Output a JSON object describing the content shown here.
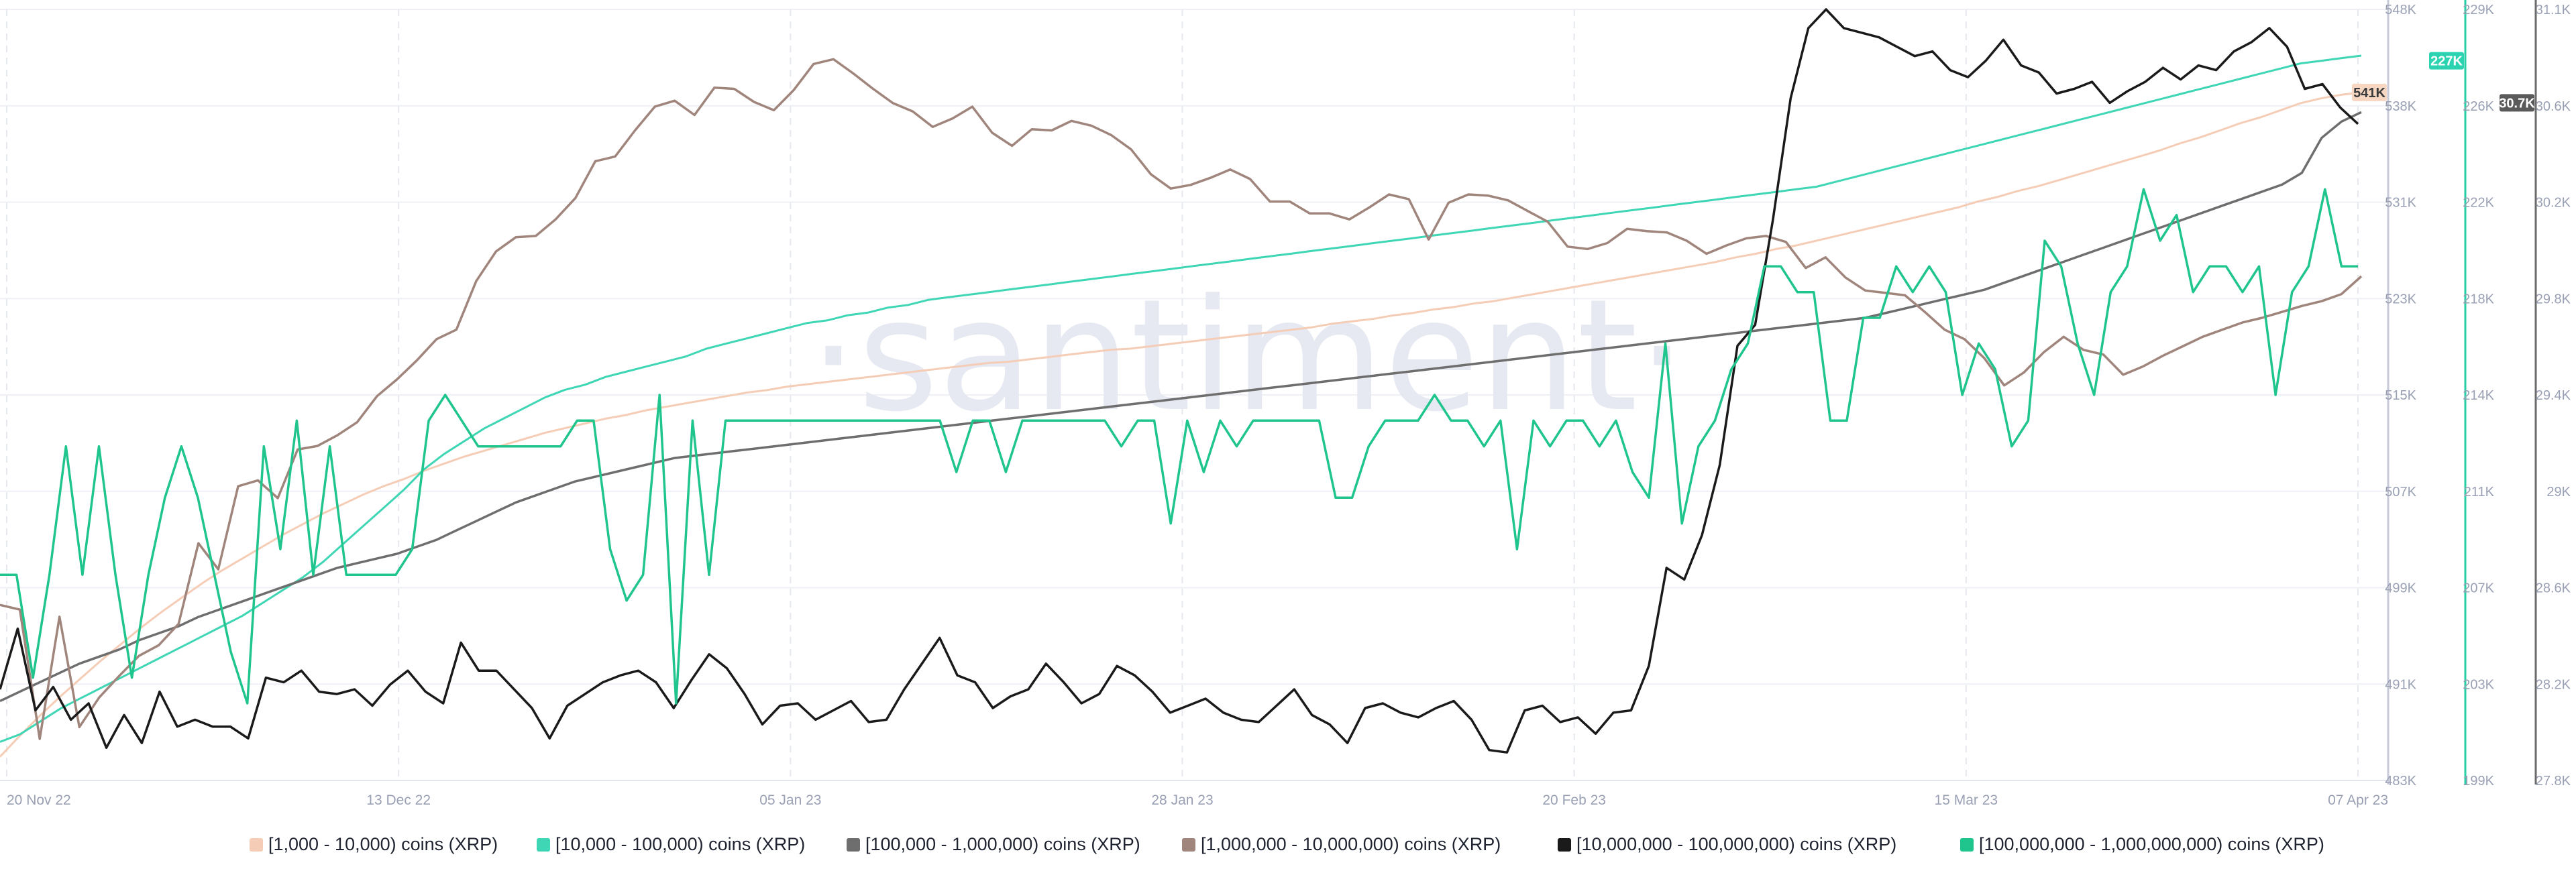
{
  "chart_data": {
    "type": "line",
    "watermark": "·santiment·",
    "x_ticks": [
      "20 Nov 22",
      "13 Dec 22",
      "05 Jan 23",
      "28 Jan 23",
      "20 Feb 23",
      "15 Mar 23",
      "07 Apr 23"
    ],
    "axes": [
      {
        "id": "a1",
        "color": "#c7c9d9",
        "ticks": [
          "548K",
          "538K",
          "531K",
          "523K",
          "515K",
          "507K",
          "499K",
          "491K",
          "483K"
        ],
        "ylim": [
          483,
          548
        ],
        "current_badge": "541K",
        "badge_color": "#f7d6c2",
        "badge_text_color": "#3a3a3a"
      },
      {
        "id": "a2",
        "color": "#26d0a4",
        "ticks": [
          "229K",
          "226K",
          "222K",
          "218K",
          "214K",
          "211K",
          "207K",
          "203K",
          "199K"
        ],
        "ylim": [
          199,
          229
        ],
        "current_badge": "227K",
        "badge_color": "#2bd3b0",
        "badge_text_color": "#ffffff"
      },
      {
        "id": "a3",
        "color": "#6b6b6b",
        "ticks": [
          "31.1K",
          "30.6K",
          "30.2K",
          "29.8K",
          "29.4K",
          "29K",
          "28.6K",
          "28.2K",
          "27.8K"
        ],
        "ylim": [
          27.8,
          31.1
        ],
        "current_badge": "30.7K",
        "badge_color": "#5a5a5a",
        "badge_text_color": "#ffffff"
      }
    ],
    "series": [
      {
        "name": "[1,000 - 10,000) coins (XRP)",
        "color": "#f5cdb6",
        "unit": "K",
        "y": [
          485.0,
          486.8,
          488.5,
          490.1,
          491.6,
          493.1,
          494.5,
          495.9,
          497.2,
          498.4,
          499.6,
          500.7,
          501.7,
          502.7,
          503.7,
          504.6,
          505.5,
          506.3,
          507.1,
          507.8,
          508.4,
          509.1,
          509.7,
          510.3,
          510.8,
          511.3,
          511.8,
          512.3,
          512.7,
          513.1,
          513.5,
          513.8,
          514.2,
          514.5,
          514.8,
          515.1,
          515.4,
          515.7,
          515.9,
          516.2,
          516.4,
          516.6,
          516.8,
          517.0,
          517.2,
          517.4,
          517.6,
          517.8,
          518.0,
          518.2,
          518.3,
          518.5,
          518.7,
          518.9,
          519.1,
          519.3,
          519.4,
          519.6,
          519.8,
          520.0,
          520.2,
          520.4,
          520.6,
          520.8,
          521.0,
          521.2,
          521.5,
          521.7,
          521.9,
          522.2,
          522.4,
          522.7,
          522.9,
          523.2,
          523.4,
          523.7,
          524.0,
          524.3,
          524.6,
          524.9,
          525.2,
          525.5,
          525.8,
          526.1,
          526.4,
          526.7,
          527.1,
          527.4,
          527.8,
          528.1,
          528.5,
          528.9,
          529.3,
          529.7,
          530.1,
          530.5,
          530.9,
          531.3,
          531.8,
          532.2,
          532.7,
          533.1,
          533.6,
          534.1,
          534.6,
          535.1,
          535.6,
          536.1,
          536.7,
          537.2,
          537.8,
          538.4,
          538.9,
          539.5,
          540.1,
          540.5,
          540.8,
          541.0
        ]
      },
      {
        "name": "[10,000 - 100,000) coins (XRP)",
        "color": "#3ed6b4",
        "unit": "K",
        "y": [
          200.5,
          200.8,
          201.3,
          201.8,
          202.2,
          202.6,
          203.0,
          203.4,
          203.8,
          204.2,
          204.6,
          205.0,
          205.4,
          205.9,
          206.4,
          206.9,
          207.5,
          208.2,
          208.9,
          209.6,
          210.3,
          211.1,
          211.7,
          212.2,
          212.7,
          213.1,
          213.5,
          213.9,
          214.2,
          214.4,
          214.7,
          214.9,
          215.1,
          215.3,
          215.5,
          215.8,
          216.0,
          216.2,
          216.4,
          216.6,
          216.8,
          216.9,
          217.1,
          217.2,
          217.4,
          217.5,
          217.7,
          217.8,
          217.9,
          218.0,
          218.1,
          218.2,
          218.3,
          218.4,
          218.5,
          218.6,
          218.7,
          218.8,
          218.9,
          219.0,
          219.1,
          219.2,
          219.3,
          219.4,
          219.5,
          219.6,
          219.7,
          219.8,
          219.9,
          220.0,
          220.1,
          220.2,
          220.3,
          220.4,
          220.5,
          220.6,
          220.7,
          220.8,
          220.9,
          221.0,
          221.1,
          221.2,
          221.3,
          221.4,
          221.5,
          221.6,
          221.7,
          221.8,
          221.9,
          222.0,
          222.1,
          222.3,
          222.5,
          222.7,
          222.9,
          223.1,
          223.3,
          223.5,
          223.7,
          223.9,
          224.1,
          224.3,
          224.5,
          224.7,
          224.9,
          225.1,
          225.3,
          225.5,
          225.7,
          225.9,
          226.1,
          226.3,
          226.5,
          226.7,
          226.9,
          227.0,
          227.1,
          227.2
        ]
      },
      {
        "name": "[100,000  - 1,000,000) coins (XRP)",
        "color": "#6e6e6e",
        "unit": "K",
        "y": [
          28.14,
          28.18,
          28.22,
          28.26,
          28.3,
          28.33,
          28.36,
          28.4,
          28.43,
          28.46,
          28.5,
          28.53,
          28.56,
          28.59,
          28.62,
          28.65,
          28.68,
          28.71,
          28.73,
          28.75,
          28.77,
          28.8,
          28.83,
          28.87,
          28.91,
          28.95,
          28.99,
          29.02,
          29.05,
          29.08,
          29.1,
          29.12,
          29.14,
          29.16,
          29.18,
          29.19,
          29.2,
          29.21,
          29.22,
          29.23,
          29.24,
          29.25,
          29.26,
          29.27,
          29.28,
          29.29,
          29.3,
          29.31,
          29.32,
          29.33,
          29.34,
          29.35,
          29.36,
          29.37,
          29.38,
          29.39,
          29.4,
          29.41,
          29.42,
          29.43,
          29.44,
          29.45,
          29.46,
          29.47,
          29.48,
          29.49,
          29.5,
          29.51,
          29.52,
          29.53,
          29.54,
          29.55,
          29.56,
          29.57,
          29.58,
          29.59,
          29.6,
          29.61,
          29.62,
          29.63,
          29.64,
          29.65,
          29.66,
          29.67,
          29.68,
          29.69,
          29.7,
          29.71,
          29.72,
          29.73,
          29.74,
          29.75,
          29.76,
          29.77,
          29.78,
          29.8,
          29.82,
          29.84,
          29.86,
          29.88,
          29.9,
          29.93,
          29.96,
          29.99,
          30.02,
          30.05,
          30.08,
          30.11,
          30.14,
          30.17,
          30.2,
          30.23,
          30.26,
          30.29,
          30.32,
          30.35,
          30.4,
          30.55,
          30.62,
          30.66
        ]
      },
      {
        "name": "[1,000,000 - 10,000,000) coins (XRP)",
        "color": "#a0857c",
        "unit": "K",
        "y": [
          497.8,
          497.4,
          486.5,
          496.8,
          487.5,
          490.0,
          491.8,
          493.5,
          494.4,
          496.2,
          503.0,
          500.8,
          507.8,
          508.3,
          506.8,
          510.9,
          511.2,
          512.1,
          513.2,
          515.4,
          516.8,
          518.4,
          520.2,
          521.0,
          525.1,
          527.6,
          528.8,
          528.9,
          530.3,
          532.1,
          535.2,
          535.6,
          537.8,
          539.8,
          540.3,
          539.1,
          541.4,
          541.3,
          540.2,
          539.5,
          541.2,
          543.4,
          543.8,
          542.6,
          541.3,
          540.1,
          539.4,
          538.1,
          538.8,
          539.8,
          537.6,
          536.5,
          537.9,
          537.8,
          538.6,
          538.2,
          537.4,
          536.2,
          534.1,
          532.9,
          533.2,
          533.8,
          534.5,
          533.7,
          531.8,
          531.8,
          530.8,
          530.8,
          530.3,
          531.3,
          532.4,
          532.0,
          528.6,
          531.7,
          532.4,
          532.3,
          531.9,
          531.0,
          530.1,
          528.0,
          527.8,
          528.3,
          529.5,
          529.3,
          529.2,
          528.5,
          527.4,
          528.1,
          528.7,
          528.9,
          528.4,
          526.2,
          527.1,
          525.4,
          524.3,
          524.1,
          523.9,
          522.5,
          521.0,
          520.2,
          518.6,
          516.3,
          517.4,
          519.1,
          520.4,
          519.3,
          518.9,
          517.2,
          517.9,
          518.8,
          519.6,
          520.4,
          521.0,
          521.6,
          522.0,
          522.5,
          523.0,
          523.4,
          524.0,
          525.5
        ]
      },
      {
        "name": "[10,000,000 - 100,000,000) coins (XRP)",
        "color": "#1a1a1a",
        "unit": "K",
        "y": [
          28.19,
          28.45,
          28.1,
          28.2,
          28.06,
          28.13,
          27.94,
          28.08,
          27.96,
          28.18,
          28.03,
          28.06,
          28.03,
          28.03,
          27.98,
          28.24,
          28.22,
          28.27,
          28.18,
          28.17,
          28.19,
          28.12,
          28.21,
          28.27,
          28.18,
          28.13,
          28.39,
          28.27,
          28.27,
          28.19,
          28.11,
          27.98,
          28.12,
          28.17,
          28.22,
          28.25,
          28.27,
          28.22,
          28.11,
          28.23,
          28.34,
          28.28,
          28.17,
          28.04,
          28.12,
          28.13,
          28.06,
          28.1,
          28.14,
          28.05,
          28.06,
          28.19,
          28.3,
          28.41,
          28.25,
          28.22,
          28.11,
          28.16,
          28.19,
          28.3,
          28.22,
          28.13,
          28.17,
          28.29,
          28.25,
          28.18,
          28.09,
          28.12,
          28.15,
          28.09,
          28.06,
          28.05,
          28.12,
          28.19,
          28.08,
          28.04,
          27.96,
          28.11,
          28.13,
          28.09,
          28.07,
          28.11,
          28.14,
          28.06,
          27.93,
          27.92,
          28.1,
          28.12,
          28.05,
          28.07,
          28.0,
          28.09,
          28.1,
          28.29,
          28.71,
          28.66,
          28.85,
          29.15,
          29.66,
          29.75,
          30.2,
          30.72,
          31.02,
          31.1,
          31.02,
          31.0,
          30.98,
          30.94,
          30.9,
          30.92,
          30.84,
          30.81,
          30.88,
          30.97,
          30.86,
          30.83,
          30.74,
          30.76,
          30.79,
          30.7,
          30.75,
          30.79,
          30.85,
          30.8,
          30.86,
          30.84,
          30.92,
          30.96,
          31.02,
          30.94,
          30.76,
          30.78,
          30.68,
          30.61
        ]
      },
      {
        "name": "[100,000,000 - 1,000,000,000) coins (XRP)",
        "color": "#1fc58c",
        "unit": "K",
        "y": [
          207,
          207,
          203,
          207,
          212,
          207,
          212,
          207,
          203,
          207,
          210,
          212,
          210,
          207,
          204,
          202,
          212,
          208,
          213,
          207,
          212,
          207,
          207,
          207,
          207,
          208,
          213,
          214,
          213,
          212,
          212,
          212,
          212,
          212,
          212,
          213,
          213,
          208,
          206,
          207,
          214,
          202,
          213,
          207,
          213,
          213,
          213,
          213,
          213,
          213,
          213,
          213,
          213,
          213,
          213,
          213,
          213,
          213,
          211,
          213,
          213,
          211,
          213,
          213,
          213,
          213,
          213,
          213,
          212,
          213,
          213,
          209,
          213,
          211,
          213,
          212,
          213,
          213,
          213,
          213,
          213,
          210,
          210,
          212,
          213,
          213,
          213,
          214,
          213,
          213,
          212,
          213,
          208,
          213,
          212,
          213,
          213,
          212,
          213,
          211,
          210,
          216,
          209,
          212,
          213,
          215,
          216,
          219,
          219,
          218,
          218,
          213,
          213,
          217,
          217,
          219,
          218,
          219,
          218,
          214,
          216,
          215,
          212,
          213,
          220,
          219,
          216,
          214,
          218,
          219,
          222,
          220,
          221,
          218,
          219,
          219,
          218,
          219,
          214,
          218,
          219,
          222,
          219,
          219
        ]
      }
    ]
  }
}
